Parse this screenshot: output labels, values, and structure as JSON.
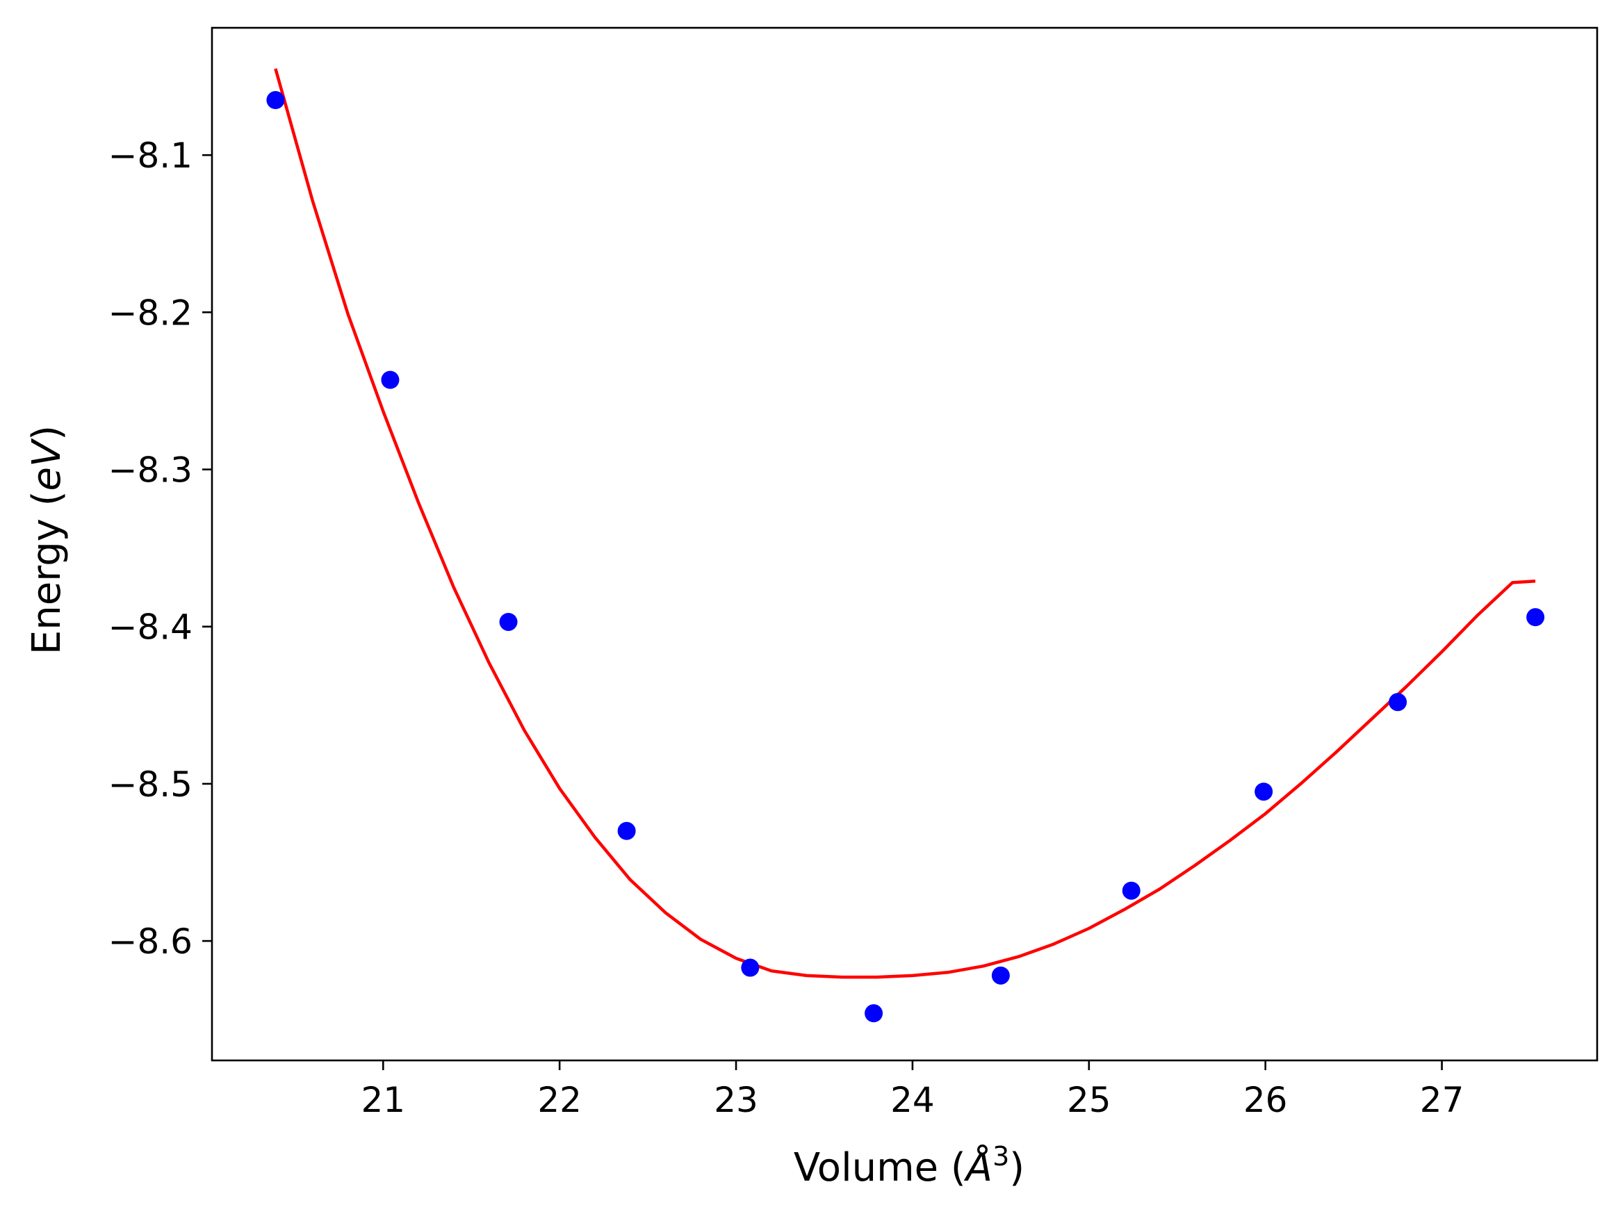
{
  "chart_data": {
    "type": "scatter",
    "title": "",
    "xlabel_parts": {
      "prefix": "Volume (",
      "symbol": "Å",
      "sup": "3",
      "suffix": ")"
    },
    "ylabel_parts": {
      "prefix": "Energy (",
      "unit": "eV",
      "suffix": ")"
    },
    "xlim": [
      20.03,
      27.88
    ],
    "ylim": [
      -8.676,
      -8.019
    ],
    "xticks": [
      21,
      22,
      23,
      24,
      25,
      26,
      27
    ],
    "xtick_labels": [
      "21",
      "22",
      "23",
      "24",
      "25",
      "26",
      "27"
    ],
    "yticks": [
      -8.1,
      -8.2,
      -8.3,
      -8.4,
      -8.5,
      -8.6
    ],
    "ytick_labels": [
      "−8.1",
      "−8.2",
      "−8.3",
      "−8.4",
      "−8.5",
      "−8.6"
    ],
    "grid": false,
    "series": [
      {
        "kind": "points",
        "color": "#0000ff",
        "x": [
          20.39,
          21.04,
          21.71,
          22.38,
          23.08,
          23.78,
          24.5,
          25.24,
          25.99,
          26.75,
          27.53
        ],
        "y": [
          -8.065,
          -8.243,
          -8.397,
          -8.53,
          -8.617,
          -8.646,
          -8.622,
          -8.568,
          -8.505,
          -8.448,
          -8.394
        ]
      },
      {
        "kind": "line",
        "color": "#ff0000",
        "x": [
          20.39,
          20.6,
          20.8,
          21.0,
          21.2,
          21.4,
          21.6,
          21.8,
          22.0,
          22.2,
          22.4,
          22.6,
          22.8,
          23.0,
          23.2,
          23.4,
          23.6,
          23.8,
          24.0,
          24.2,
          24.4,
          24.6,
          24.8,
          25.0,
          25.2,
          25.4,
          25.6,
          25.8,
          26.0,
          26.2,
          26.4,
          26.6,
          26.8,
          27.0,
          27.2,
          27.4,
          27.53
        ],
        "y": [
          -8.045,
          -8.129,
          -8.201,
          -8.263,
          -8.321,
          -8.375,
          -8.423,
          -8.466,
          -8.503,
          -8.534,
          -8.561,
          -8.582,
          -8.599,
          -8.611,
          -8.619,
          -8.622,
          -8.623,
          -8.623,
          -8.622,
          -8.62,
          -8.616,
          -8.61,
          -8.602,
          -8.592,
          -8.58,
          -8.567,
          -8.552,
          -8.536,
          -8.519,
          -8.5,
          -8.48,
          -8.459,
          -8.438,
          -8.416,
          -8.393,
          -8.372,
          -8.371
        ]
      }
    ]
  }
}
